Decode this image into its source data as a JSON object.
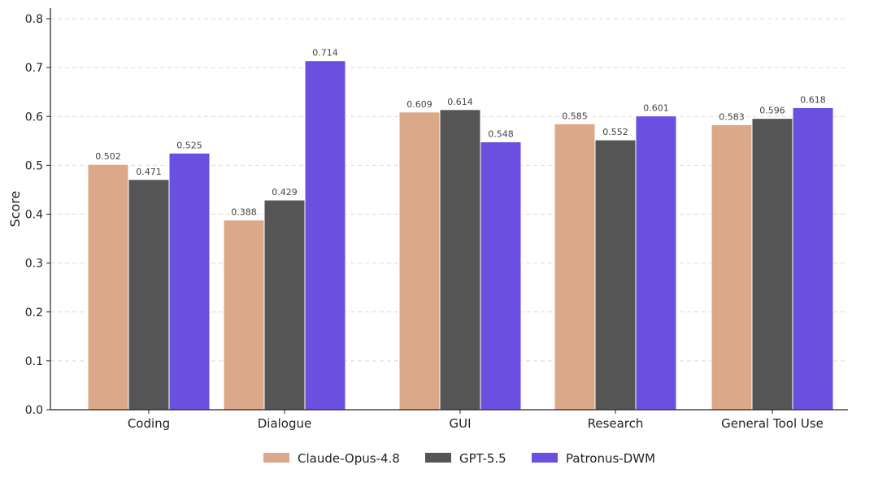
{
  "chart_data": {
    "type": "bar",
    "title": "",
    "xlabel": "",
    "ylabel": "Score",
    "ylim": [
      0,
      0.8
    ],
    "yticks": [
      "0.0",
      "0.1",
      "0.2",
      "0.3",
      "0.4",
      "0.5",
      "0.6",
      "0.7",
      "0.8"
    ],
    "grid": true,
    "legend_position": "bottom",
    "categories": [
      "Coding",
      "Dialogue",
      "GUI",
      "Research",
      "General Tool Use"
    ],
    "series": [
      {
        "name": "Claude-Opus-4.8",
        "color": "#dca88a",
        "values": [
          0.502,
          0.388,
          0.609,
          0.585,
          0.583
        ],
        "labels": [
          "0.502",
          "0.388",
          "0.609",
          "0.585",
          "0.583"
        ]
      },
      {
        "name": "GPT-5.5",
        "color": "#555555",
        "values": [
          0.471,
          0.429,
          0.614,
          0.552,
          0.596
        ],
        "labels": [
          "0.471",
          "0.429",
          "0.614",
          "0.552",
          "0.596"
        ]
      },
      {
        "name": "Patronus-DWM",
        "color": "#6a4fe0",
        "values": [
          0.525,
          0.714,
          0.548,
          0.601,
          0.618
        ],
        "labels": [
          "0.525",
          "0.714",
          "0.548",
          "0.601",
          "0.618"
        ]
      }
    ]
  }
}
